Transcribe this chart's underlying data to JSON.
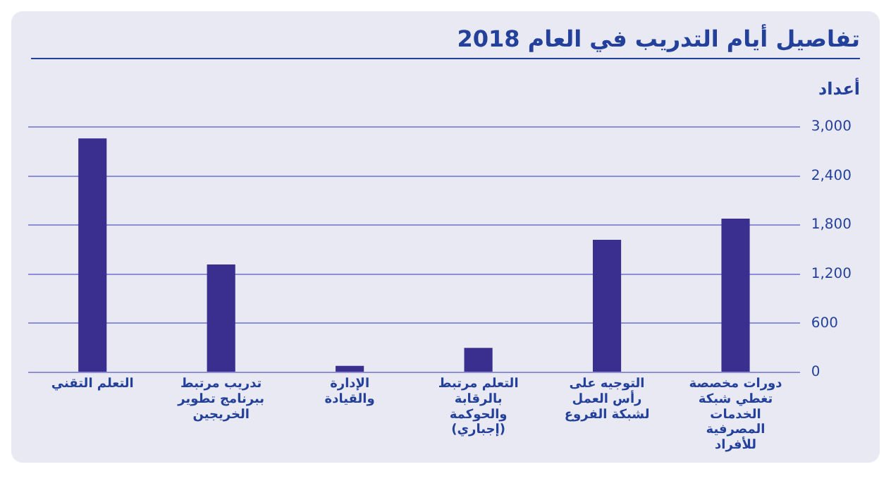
{
  "chart_data": {
    "type": "bar",
    "title": "تفاصيل أيام التدريب في العام 2018",
    "ylabel": "أعداد",
    "categories": [
      "التعلم التقني",
      "تدريب مرتبط ببرنامج تطوير الخريجين",
      "الإدارة والقيادة",
      "التعلم مرتبط بالرقابة والحوكمة (إجباري)",
      "التوجيه على رأس العمل لشبكة الفروع",
      "دورات مخصصة تغطي شبكة الخدمات المصرفية للأفراد"
    ],
    "values": [
      2860,
      1320,
      80,
      300,
      1620,
      1880
    ],
    "color": "#3a2f8f",
    "ylim": [
      0,
      3000
    ],
    "yticks": [
      {
        "value": 0,
        "label": "0"
      },
      {
        "value": 600,
        "label": "600"
      },
      {
        "value": 1200,
        "label": "1,200"
      },
      {
        "value": 1800,
        "label": "1,800"
      },
      {
        "value": 2400,
        "label": "2,400"
      },
      {
        "value": 3000,
        "label": "3,000"
      }
    ],
    "grid": "y",
    "legend": false
  }
}
